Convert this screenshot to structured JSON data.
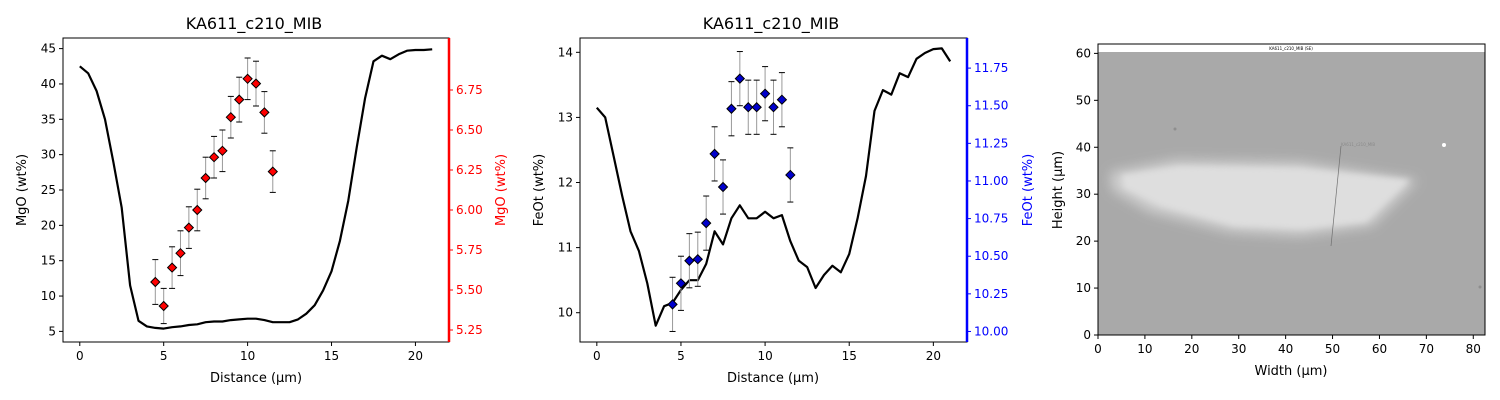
{
  "chart_data": [
    {
      "type": "line",
      "title": "KA611_c210_MIB",
      "xlabel": "Distance (µm)",
      "ylabel": "MgO (wt%)",
      "y2label": "MgO (wt%)",
      "xlim": [
        -1,
        22
      ],
      "ylim": [
        3.5,
        46.5
      ],
      "y2lim": [
        5.175,
        7.075
      ],
      "xticks": [
        "0",
        "5",
        "10",
        "15",
        "20"
      ],
      "yticks": [
        "5",
        "10",
        "15",
        "20",
        "25",
        "30",
        "35",
        "40",
        "45"
      ],
      "y2ticks": [
        "5.25",
        "5.50",
        "5.75",
        "6.00",
        "6.25",
        "6.50",
        "6.75"
      ],
      "secondary_color": "#ff0000",
      "series": [
        {
          "axis": "left",
          "color": "#000000",
          "x": [
            0,
            0.5,
            1,
            1.5,
            2,
            2.5,
            3,
            3.5,
            4,
            4.5,
            5,
            5.5,
            6,
            6.5,
            7,
            7.5,
            8,
            8.5,
            9,
            9.5,
            10,
            10.5,
            11,
            11.5,
            12,
            12.5,
            13,
            13.5,
            14,
            14.5,
            15,
            15.5,
            16,
            16.5,
            17,
            17.5,
            18,
            18.5,
            19,
            19.5,
            20,
            20.5,
            21
          ],
          "y": [
            42.5,
            41.5,
            39,
            35,
            29,
            22.5,
            11.5,
            6.5,
            5.7,
            5.5,
            5.4,
            5.6,
            5.7,
            5.9,
            6.0,
            6.3,
            6.4,
            6.4,
            6.6,
            6.7,
            6.8,
            6.8,
            6.6,
            6.3,
            6.3,
            6.3,
            6.7,
            7.5,
            8.7,
            10.8,
            13.5,
            17.8,
            23.5,
            31,
            38,
            43.2,
            44,
            43.5,
            44.2,
            44.7,
            44.8,
            44.8,
            44.9
          ]
        },
        {
          "axis": "right",
          "color": "#ff0000",
          "marker": "diamond",
          "x": [
            4.5,
            5,
            5.5,
            6,
            6.5,
            7,
            7.5,
            8,
            8.5,
            9,
            9.5,
            10,
            10.5,
            11,
            11.5
          ],
          "y": [
            5.55,
            5.4,
            5.64,
            5.73,
            5.89,
            6.0,
            6.2,
            6.33,
            6.37,
            6.58,
            6.69,
            6.82,
            6.79,
            6.61,
            6.24
          ],
          "err": [
            0.14,
            0.11,
            0.13,
            0.14,
            0.13,
            0.13,
            0.13,
            0.13,
            0.13,
            0.13,
            0.14,
            0.13,
            0.14,
            0.13,
            0.13
          ]
        }
      ]
    },
    {
      "type": "line",
      "title": "KA611_c210_MIB",
      "xlabel": "Distance (µm)",
      "ylabel": "FeOt (wt%)",
      "y2label": "FeOt (wt%)",
      "xlim": [
        -1,
        22
      ],
      "ylim": [
        9.55,
        14.22
      ],
      "y2lim": [
        9.93,
        11.95
      ],
      "xticks": [
        "0",
        "5",
        "10",
        "15",
        "20"
      ],
      "yticks": [
        "10",
        "11",
        "12",
        "13",
        "14"
      ],
      "y2ticks": [
        "10.00",
        "10.25",
        "10.50",
        "10.75",
        "11.00",
        "11.25",
        "11.50",
        "11.75"
      ],
      "secondary_color": "#0000ff",
      "series": [
        {
          "axis": "left",
          "color": "#000000",
          "x": [
            0,
            0.5,
            1,
            1.5,
            2,
            2.5,
            3,
            3.5,
            4,
            4.5,
            5,
            5.5,
            6,
            6.5,
            7,
            7.5,
            8,
            8.5,
            9,
            9.5,
            10,
            10.5,
            11,
            11.5,
            12,
            12.5,
            13,
            13.5,
            14,
            14.5,
            15,
            15.5,
            16,
            16.5,
            17,
            17.5,
            18,
            18.5,
            19,
            19.5,
            20,
            20.5,
            21
          ],
          "y": [
            13.15,
            13.0,
            12.4,
            11.8,
            11.25,
            10.95,
            10.45,
            9.8,
            10.1,
            10.15,
            10.35,
            10.5,
            10.5,
            10.75,
            11.25,
            11.05,
            11.45,
            11.65,
            11.45,
            11.45,
            11.55,
            11.45,
            11.5,
            11.1,
            10.8,
            10.7,
            10.38,
            10.58,
            10.72,
            10.62,
            10.9,
            11.45,
            12.1,
            13.1,
            13.42,
            13.35,
            13.68,
            13.62,
            13.9,
            13.99,
            14.05,
            14.06,
            13.86
          ]
        },
        {
          "axis": "right",
          "color": "#0000cc",
          "marker": "diamond",
          "x": [
            4.5,
            5,
            5.5,
            6,
            6.5,
            7,
            7.5,
            8,
            8.5,
            9,
            9.5,
            10,
            10.5,
            11,
            11.5
          ],
          "y": [
            10.18,
            10.32,
            10.47,
            10.48,
            10.72,
            11.18,
            10.96,
            11.48,
            11.68,
            11.49,
            11.49,
            11.58,
            11.49,
            11.54,
            11.04
          ],
          "err": [
            0.18,
            0.18,
            0.18,
            0.18,
            0.18,
            0.18,
            0.18,
            0.18,
            0.18,
            0.18,
            0.18,
            0.18,
            0.18,
            0.18,
            0.18
          ]
        }
      ]
    }
  ],
  "image_panel": {
    "xlabel": "Width (µm)",
    "ylabel": "Height (µm)",
    "xlim": [
      0,
      82.5
    ],
    "ylim": [
      0,
      62
    ],
    "xticks": [
      "0",
      "10",
      "20",
      "30",
      "40",
      "50",
      "60",
      "70",
      "80"
    ],
    "yticks": [
      "0",
      "10",
      "20",
      "30",
      "40",
      "50",
      "60"
    ],
    "image_caption": "KA611_c210_MIB (SE)",
    "image_label": "KA611_c210_MIB"
  }
}
